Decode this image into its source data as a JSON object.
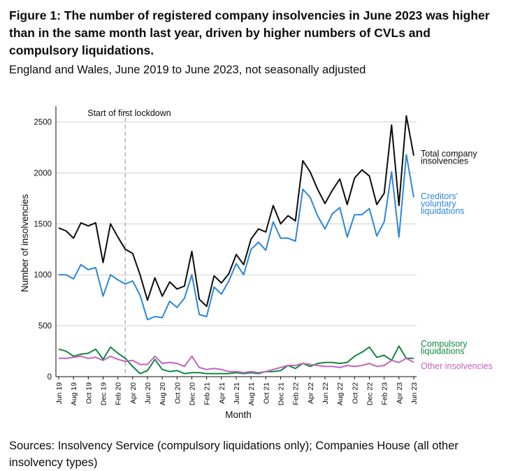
{
  "title": "Figure 1: The number of registered company insolvencies in June 2023 was higher than in the same month last year, driven by higher numbers of CVLs and compulsory liquidations.",
  "subtitle": "England and Wales, June 2019 to June 2023, not seasonally adjusted",
  "source": "Sources: Insolvency Service (compulsory liquidations only); Companies House (all other insolvency types)",
  "colors": {
    "total": "#0b0c0c",
    "cvl": "#2e86d8",
    "compulsory": "#11883f",
    "other": "#c462c0",
    "grid": "#cfcfcf",
    "annotation_line": "#b1b4b6"
  },
  "chart_data": {
    "type": "line",
    "xlabel": "Month",
    "ylabel": "Number of insolvencies",
    "ylim": [
      0,
      2600
    ],
    "yticks": [
      0,
      500,
      1000,
      1500,
      2000,
      2500
    ],
    "grid": true,
    "x": [
      "Jun 19",
      "Jul 19",
      "Aug 19",
      "Sep 19",
      "Oct 19",
      "Nov 19",
      "Dec 19",
      "Jan 20",
      "Feb 20",
      "Mar 20",
      "Apr 20",
      "May 20",
      "Jun 20",
      "Jul 20",
      "Aug 20",
      "Sep 20",
      "Oct 20",
      "Nov 20",
      "Dec 20",
      "Jan 21",
      "Feb 21",
      "Mar 21",
      "Apr 21",
      "May 21",
      "Jun 21",
      "Jul 21",
      "Aug 21",
      "Sep 21",
      "Oct 21",
      "Nov 21",
      "Dec 21",
      "Jan 22",
      "Feb 22",
      "Mar 22",
      "Apr 22",
      "May 22",
      "Jun 22",
      "Jul 22",
      "Aug 22",
      "Sep 22",
      "Oct 22",
      "Nov 22",
      "Dec 22",
      "Jan 23",
      "Feb 23",
      "Mar 23",
      "Apr 23",
      "May 23",
      "Jun 23"
    ],
    "tick_labels": [
      "Jun 19",
      "Aug 19",
      "Oct 19",
      "Dec 19",
      "Feb 20",
      "Apr 20",
      "Jun 20",
      "Aug 20",
      "Oct 20",
      "Dec 20",
      "Feb 21",
      "Apr 21",
      "Jun 21",
      "Aug 21",
      "Oct 21",
      "Dec 21",
      "Feb 22",
      "Apr 22",
      "Jun 22",
      "Aug 22",
      "Oct 22",
      "Dec 22",
      "Feb 23",
      "Apr 23",
      "Jun 23"
    ],
    "series": [
      {
        "key": "total",
        "name": "Total company insolvencies",
        "label_lines": [
          "Total company",
          "insolvencies"
        ],
        "values": [
          1460,
          1430,
          1360,
          1510,
          1480,
          1510,
          1120,
          1500,
          1370,
          1250,
          1210,
          1000,
          750,
          970,
          790,
          930,
          860,
          890,
          1230,
          760,
          690,
          990,
          920,
          1010,
          1200,
          1100,
          1350,
          1450,
          1420,
          1680,
          1500,
          1580,
          1530,
          2120,
          2010,
          1840,
          1700,
          1830,
          1940,
          1690,
          1950,
          2030,
          1970,
          1690,
          1800,
          2470,
          1680,
          2560,
          2170
        ]
      },
      {
        "key": "cvl",
        "name": "Creditors' voluntary liquidations",
        "label_lines": [
          "Creditors'",
          "voluntary",
          "liquidations"
        ],
        "values": [
          1000,
          1000,
          960,
          1100,
          1050,
          1070,
          790,
          1000,
          950,
          910,
          940,
          800,
          560,
          590,
          580,
          740,
          680,
          770,
          1000,
          610,
          590,
          880,
          810,
          940,
          1110,
          1000,
          1250,
          1320,
          1240,
          1520,
          1360,
          1360,
          1330,
          1840,
          1760,
          1580,
          1450,
          1600,
          1660,
          1370,
          1590,
          1590,
          1650,
          1380,
          1520,
          2010,
          1370,
          2180,
          1760
        ]
      },
      {
        "key": "compulsory",
        "name": "Compulsory liquidations",
        "label_lines": [
          "Compulsory",
          "liquidations"
        ],
        "values": [
          270,
          250,
          200,
          220,
          230,
          270,
          170,
          290,
          230,
          180,
          100,
          30,
          60,
          170,
          70,
          50,
          60,
          30,
          40,
          40,
          30,
          30,
          30,
          30,
          40,
          30,
          40,
          30,
          50,
          50,
          60,
          110,
          80,
          130,
          100,
          130,
          140,
          140,
          130,
          140,
          200,
          240,
          290,
          190,
          210,
          160,
          300,
          180,
          180
        ]
      },
      {
        "key": "other",
        "name": "Other insolvencies",
        "label_lines": [
          "Other insolvencies"
        ],
        "values": [
          180,
          180,
          190,
          200,
          180,
          190,
          160,
          200,
          170,
          150,
          160,
          120,
          120,
          200,
          130,
          140,
          130,
          100,
          200,
          90,
          70,
          80,
          70,
          50,
          50,
          40,
          50,
          40,
          50,
          70,
          90,
          110,
          110,
          130,
          120,
          110,
          100,
          100,
          90,
          110,
          100,
          110,
          130,
          100,
          110,
          160,
          140,
          180,
          140
        ]
      }
    ],
    "annotations": [
      {
        "text": "Start of first lockdown",
        "x": "Mar 20"
      }
    ]
  }
}
